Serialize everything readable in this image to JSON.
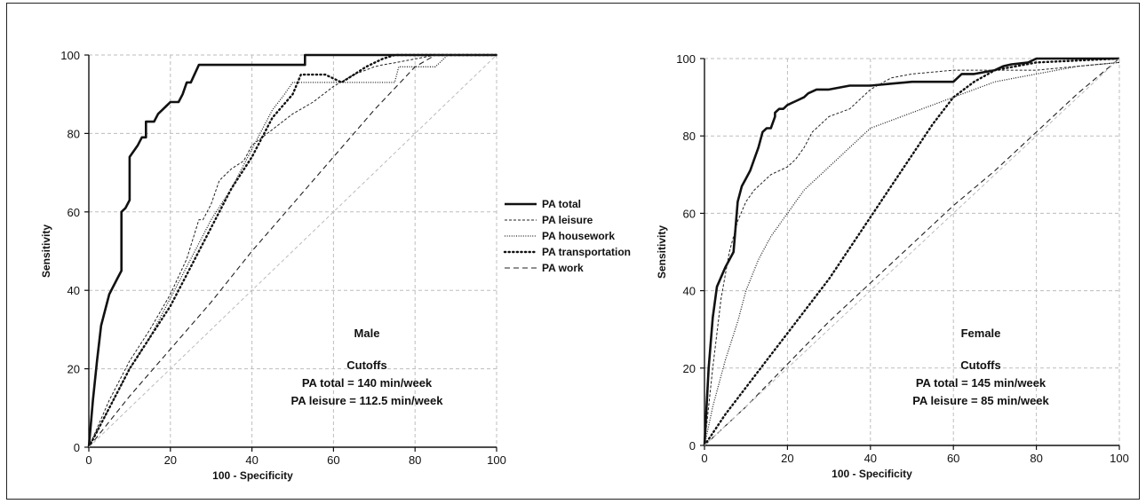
{
  "chart_data": [
    {
      "type": "line",
      "panel": "male",
      "xlabel": "100 - Specificity",
      "ylabel": "Sensitivity",
      "xlim": [
        0,
        100
      ],
      "ylim": [
        0,
        100
      ],
      "xticks": [
        0,
        20,
        40,
        60,
        80,
        100
      ],
      "yticks": [
        0,
        20,
        40,
        60,
        80,
        100
      ],
      "grid": true,
      "annotation": {
        "title": "Male",
        "cutoffs_heading": "Cutoffs",
        "line1": "PA total = 140 min/week",
        "line2": "PA leisure = 112.5 min/week"
      },
      "series": [
        {
          "name": "PA total",
          "style": "total",
          "x": [
            0,
            1,
            2,
            3,
            5,
            7,
            8,
            8,
            9,
            10,
            10,
            12,
            13,
            14,
            14,
            16,
            17,
            18,
            19,
            20,
            22,
            23,
            24,
            25,
            27,
            30,
            35,
            40,
            45,
            50,
            53,
            53,
            60,
            80,
            100
          ],
          "y": [
            0,
            12,
            22,
            31,
            39,
            43,
            45,
            60,
            61,
            63,
            74,
            77,
            79,
            79,
            83,
            83,
            85,
            86,
            87,
            88,
            88,
            90,
            93,
            93,
            97.5,
            97.5,
            97.5,
            97.5,
            97.5,
            97.5,
            97.5,
            100,
            100,
            100,
            100
          ]
        },
        {
          "name": "PA leisure",
          "style": "leisure",
          "x": [
            0,
            5,
            10,
            15,
            20,
            24,
            27,
            28,
            30,
            32,
            35,
            38,
            40,
            45,
            50,
            55,
            60,
            65,
            70,
            72,
            75,
            80,
            85,
            90,
            100
          ],
          "y": [
            0,
            12,
            22,
            30,
            39,
            48,
            58,
            58,
            62,
            68,
            71,
            73,
            77,
            81,
            85,
            88,
            92,
            95,
            97,
            97.5,
            98,
            99,
            100,
            100,
            100
          ]
        },
        {
          "name": "PA housework",
          "style": "housework",
          "x": [
            0,
            5,
            10,
            15,
            20,
            25,
            30,
            35,
            40,
            45,
            48,
            50,
            60,
            65,
            70,
            72,
            75,
            76,
            80,
            85,
            88,
            100
          ],
          "y": [
            0,
            10,
            20,
            28,
            38,
            48,
            58,
            66,
            76,
            86,
            90,
            93,
            93,
            93,
            93,
            93,
            93,
            97,
            97,
            97,
            100,
            100
          ]
        },
        {
          "name": "PA transportation",
          "style": "transport",
          "x": [
            0,
            5,
            10,
            15,
            20,
            25,
            30,
            35,
            40,
            45,
            50,
            52,
            55,
            58,
            62,
            65,
            68,
            72,
            75,
            80,
            100
          ],
          "y": [
            0,
            10,
            20,
            28,
            36,
            46,
            56,
            66,
            74,
            84,
            90,
            95,
            95,
            95,
            93,
            95,
            97,
            99,
            100,
            100,
            100
          ]
        },
        {
          "name": "PA work",
          "style": "work",
          "x": [
            0,
            10,
            20,
            30,
            40,
            50,
            60,
            70,
            80,
            85,
            90,
            100
          ],
          "y": [
            0,
            13,
            25,
            37,
            50,
            62,
            74,
            86,
            97,
            100,
            100,
            100
          ]
        },
        {
          "style": "reference",
          "x": [
            0,
            100
          ],
          "y": [
            0,
            100
          ]
        }
      ]
    },
    {
      "type": "line",
      "panel": "female",
      "xlabel": "100 - Specificity",
      "ylabel": "Sensitivity",
      "xlim": [
        0,
        100
      ],
      "ylim": [
        0,
        100
      ],
      "xticks": [
        0,
        20,
        40,
        60,
        80,
        100
      ],
      "yticks": [
        0,
        20,
        40,
        60,
        80,
        100
      ],
      "grid": true,
      "annotation": {
        "title": "Female",
        "cutoffs_heading": "Cutoffs",
        "line1": "PA total = 145 min/week",
        "line2": "PA leisure = 85 min/week"
      },
      "series": [
        {
          "name": "PA total",
          "style": "total",
          "x": [
            0,
            1,
            2,
            3,
            5,
            7,
            8,
            9,
            10,
            11,
            12,
            13,
            14,
            15,
            16,
            17,
            17,
            18,
            19,
            20,
            22,
            24,
            25,
            27,
            30,
            35,
            40,
            45,
            50,
            55,
            60,
            62,
            65,
            70,
            72,
            74,
            78,
            80,
            100
          ],
          "y": [
            0,
            20,
            33,
            41,
            46,
            50,
            63,
            67,
            69,
            71,
            74,
            77,
            81,
            82,
            82,
            85,
            86,
            87,
            87,
            88,
            89,
            90,
            91,
            92,
            92,
            93,
            93,
            93.5,
            94,
            94,
            94,
            96,
            96,
            97,
            98,
            98.5,
            99,
            100,
            100
          ]
        },
        {
          "name": "PA leisure",
          "style": "leisure",
          "x": [
            0,
            2,
            4,
            6,
            8,
            10,
            12,
            14,
            16,
            18,
            20,
            22,
            24,
            26,
            28,
            30,
            35,
            40,
            45,
            50,
            60,
            70,
            80,
            90,
            100
          ],
          "y": [
            0,
            20,
            38,
            50,
            58,
            63,
            66,
            68,
            70,
            71,
            72,
            74,
            77,
            81,
            83,
            85,
            87,
            92,
            95,
            96,
            97,
            97,
            97,
            98,
            99
          ]
        },
        {
          "name": "PA housework",
          "style": "housework",
          "x": [
            0,
            2,
            5,
            8,
            10,
            13,
            16,
            20,
            24,
            28,
            32,
            36,
            40,
            45,
            50,
            55,
            60,
            65,
            70,
            80,
            90,
            100
          ],
          "y": [
            0,
            10,
            22,
            32,
            40,
            48,
            54,
            60,
            66,
            70,
            74,
            78,
            82,
            84,
            86,
            88,
            90,
            92,
            94,
            96,
            98,
            99
          ]
        },
        {
          "name": "PA transportation",
          "style": "transport",
          "x": [
            0,
            5,
            10,
            15,
            20,
            25,
            30,
            35,
            40,
            45,
            50,
            55,
            60,
            65,
            70,
            80,
            90,
            100
          ],
          "y": [
            0,
            8,
            15,
            22,
            29,
            36,
            43,
            51,
            59,
            67,
            75,
            83,
            90,
            94,
            97,
            99,
            99.5,
            100
          ]
        },
        {
          "name": "PA work",
          "style": "work",
          "x": [
            0,
            10,
            20,
            30,
            40,
            50,
            60,
            70,
            80,
            90,
            100
          ],
          "y": [
            0,
            10,
            21,
            32,
            42,
            52,
            62,
            71,
            81,
            91,
            100
          ]
        },
        {
          "style": "reference",
          "x": [
            0,
            100
          ],
          "y": [
            0,
            100
          ]
        }
      ]
    }
  ],
  "legend": {
    "position": "between-panels",
    "entries": [
      {
        "label": "PA total",
        "style": "total"
      },
      {
        "label": "PA leisure",
        "style": "leisure"
      },
      {
        "label": "PA housework",
        "style": "housework"
      },
      {
        "label": "PA transportation",
        "style": "transport"
      },
      {
        "label": "PA work",
        "style": "work"
      }
    ]
  }
}
